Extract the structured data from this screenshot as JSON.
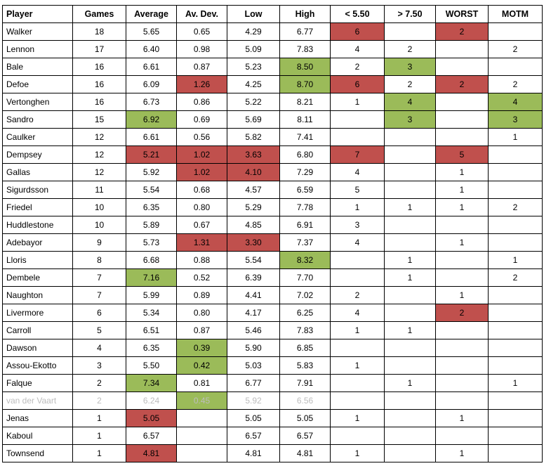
{
  "columns": [
    "Player",
    "Games",
    "Average",
    "Av. Dev.",
    "Low",
    "High",
    "< 5.50",
    "> 7.50",
    "WORST",
    "MOTM"
  ],
  "rows": [
    {
      "cells": [
        "Walker",
        "18",
        "5.65",
        "0.65",
        "4.29",
        "6.77",
        "6",
        "",
        "2",
        ""
      ],
      "hl": {
        "6": "red",
        "8": "red"
      }
    },
    {
      "cells": [
        "Lennon",
        "17",
        "6.40",
        "0.98",
        "5.09",
        "7.83",
        "4",
        "2",
        "",
        "2"
      ],
      "hl": {}
    },
    {
      "cells": [
        "Bale",
        "16",
        "6.61",
        "0.87",
        "5.23",
        "8.50",
        "2",
        "3",
        "",
        ""
      ],
      "hl": {
        "5": "green",
        "7": "green"
      }
    },
    {
      "cells": [
        "Defoe",
        "16",
        "6.09",
        "1.26",
        "4.25",
        "8.70",
        "6",
        "2",
        "2",
        "2"
      ],
      "hl": {
        "3": "red",
        "5": "green",
        "6": "red",
        "8": "red"
      }
    },
    {
      "cells": [
        "Vertonghen",
        "16",
        "6.73",
        "0.86",
        "5.22",
        "8.21",
        "1",
        "4",
        "",
        "4"
      ],
      "hl": {
        "7": "green",
        "9": "green"
      }
    },
    {
      "cells": [
        "Sandro",
        "15",
        "6.92",
        "0.69",
        "5.69",
        "8.11",
        "",
        "3",
        "",
        "3"
      ],
      "hl": {
        "2": "green",
        "7": "green",
        "9": "green"
      }
    },
    {
      "cells": [
        "Caulker",
        "12",
        "6.61",
        "0.56",
        "5.82",
        "7.41",
        "",
        "",
        "",
        "1"
      ],
      "hl": {}
    },
    {
      "cells": [
        "Dempsey",
        "12",
        "5.21",
        "1.02",
        "3.63",
        "6.80",
        "7",
        "",
        "5",
        ""
      ],
      "hl": {
        "2": "red",
        "3": "red",
        "4": "red",
        "6": "red",
        "8": "red"
      }
    },
    {
      "cells": [
        "Gallas",
        "12",
        "5.92",
        "1.02",
        "4.10",
        "7.29",
        "4",
        "",
        "1",
        ""
      ],
      "hl": {
        "3": "red",
        "4": "red"
      }
    },
    {
      "cells": [
        "Sigurdsson",
        "11",
        "5.54",
        "0.68",
        "4.57",
        "6.59",
        "5",
        "",
        "1",
        ""
      ],
      "hl": {}
    },
    {
      "cells": [
        "Friedel",
        "10",
        "6.35",
        "0.80",
        "5.29",
        "7.78",
        "1",
        "1",
        "1",
        "2"
      ],
      "hl": {}
    },
    {
      "cells": [
        "Huddlestone",
        "10",
        "5.89",
        "0.67",
        "4.85",
        "6.91",
        "3",
        "",
        "",
        ""
      ],
      "hl": {}
    },
    {
      "cells": [
        "Adebayor",
        "9",
        "5.73",
        "1.31",
        "3.30",
        "7.37",
        "4",
        "",
        "1",
        ""
      ],
      "hl": {
        "3": "red",
        "4": "red"
      }
    },
    {
      "cells": [
        "Lloris",
        "8",
        "6.68",
        "0.88",
        "5.54",
        "8.32",
        "",
        "1",
        "",
        "1"
      ],
      "hl": {
        "5": "green"
      }
    },
    {
      "cells": [
        "Dembele",
        "7",
        "7.16",
        "0.52",
        "6.39",
        "7.70",
        "",
        "1",
        "",
        "2"
      ],
      "hl": {
        "2": "green"
      }
    },
    {
      "cells": [
        "Naughton",
        "7",
        "5.99",
        "0.89",
        "4.41",
        "7.02",
        "2",
        "",
        "1",
        ""
      ],
      "hl": {}
    },
    {
      "cells": [
        "Livermore",
        "6",
        "5.34",
        "0.80",
        "4.17",
        "6.25",
        "4",
        "",
        "2",
        ""
      ],
      "hl": {
        "8": "red"
      }
    },
    {
      "cells": [
        "Carroll",
        "5",
        "6.51",
        "0.87",
        "5.46",
        "7.83",
        "1",
        "1",
        "",
        ""
      ],
      "hl": {}
    },
    {
      "cells": [
        "Dawson",
        "4",
        "6.35",
        "0.39",
        "5.90",
        "6.85",
        "",
        "",
        "",
        ""
      ],
      "hl": {
        "3": "green"
      }
    },
    {
      "cells": [
        "Assou-Ekotto",
        "3",
        "5.50",
        "0.42",
        "5.03",
        "5.83",
        "1",
        "",
        "",
        ""
      ],
      "hl": {
        "3": "green"
      }
    },
    {
      "cells": [
        "Falque",
        "2",
        "7.34",
        "0.81",
        "6.77",
        "7.91",
        "",
        "1",
        "",
        "1"
      ],
      "hl": {
        "2": "green"
      }
    },
    {
      "cells": [
        "van der Vaart",
        "2",
        "6.24",
        "0.45",
        "5.92",
        "6.56",
        "",
        "",
        "",
        ""
      ],
      "hl": {
        "3": "green"
      },
      "faded": true
    },
    {
      "cells": [
        "Jenas",
        "1",
        "5.05",
        "",
        "5.05",
        "5.05",
        "1",
        "",
        "1",
        ""
      ],
      "hl": {
        "2": "red"
      }
    },
    {
      "cells": [
        "Kaboul",
        "1",
        "6.57",
        "",
        "6.57",
        "6.57",
        "",
        "",
        "",
        ""
      ],
      "hl": {}
    },
    {
      "cells": [
        "Townsend",
        "1",
        "4.81",
        "",
        "4.81",
        "4.81",
        "1",
        "",
        "1",
        ""
      ],
      "hl": {
        "2": "red"
      }
    }
  ],
  "colors": {
    "red": "#c0504d",
    "green": "#9bbb59",
    "faded_text": "#bdbdbd"
  }
}
